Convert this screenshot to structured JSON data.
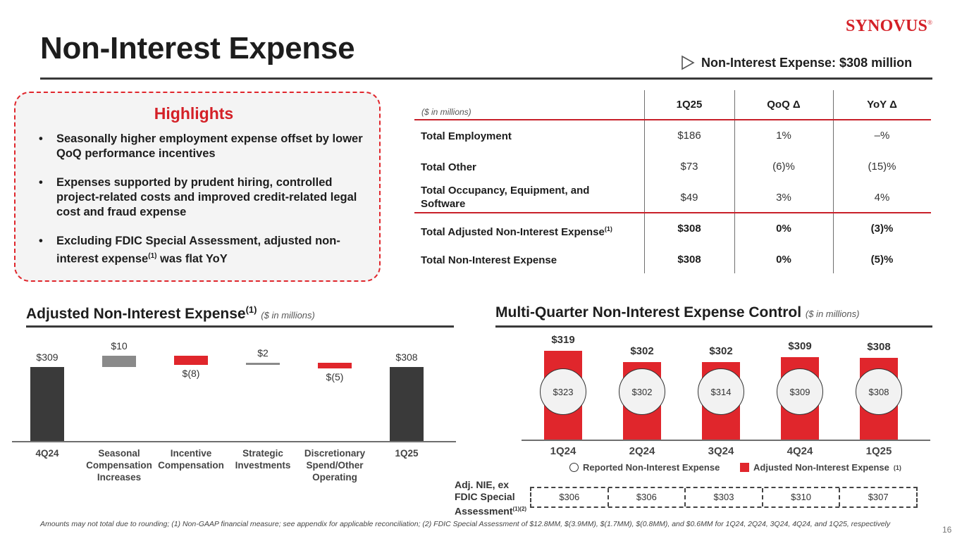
{
  "slide": {
    "title": "Non-Interest Expense",
    "logo_text": "Synovus",
    "logo_mark": "®",
    "headline": "Non-Interest Expense: $308 million",
    "page_number": "16",
    "footnote": "Amounts may not total due to rounding; (1) Non-GAAP financial measure; see appendix for applicable reconciliation; (2) FDIC Special Assessment of $12.8MM, $(3.9MM), $(1.7MM), $(0.8MM), and $0.6MM for 1Q24, 2Q24, 3Q24, 4Q24, and 1Q25, respectively"
  },
  "highlights": {
    "title": "Highlights",
    "items": [
      {
        "text": "Seasonally higher employment expense offset by lower QoQ performance incentives"
      },
      {
        "text": "Expenses supported by prudent hiring, controlled project-related costs and improved credit-related legal cost and fraud expense"
      },
      {
        "text": "Excluding FDIC Special Assessment, adjusted non-interest expense",
        "sup": "(1)",
        "tail": " was flat YoY"
      }
    ]
  },
  "table": {
    "unit_note": "($ in millions)",
    "headers": [
      "1Q25",
      "QoQ Δ",
      "YoY Δ"
    ],
    "rows": [
      {
        "label": "Total Employment",
        "sup": "",
        "values": [
          "$186",
          "1%",
          "–%"
        ],
        "bold": false
      },
      {
        "label": "Total Other",
        "sup": "",
        "values": [
          "$73",
          "(6)%",
          "(15)%"
        ],
        "bold": false
      },
      {
        "label": "Total Occupancy, Equipment, and Software",
        "sup": "",
        "values": [
          "$49",
          "3%",
          "4%"
        ],
        "bold": false
      },
      {
        "label": "Total Adjusted Non-Interest Expense",
        "sup": "(1)",
        "values": [
          "$308",
          "0%",
          "(3)%"
        ],
        "bold": true
      },
      {
        "label": "Total Non-Interest Expense",
        "sup": "",
        "values": [
          "$308",
          "0%",
          "(5)%"
        ],
        "bold": true
      }
    ]
  },
  "left_section": {
    "title": "Adjusted Non-Interest Expense",
    "title_sup": "(1)",
    "subtitle": "($ in millions)"
  },
  "right_section": {
    "title": "Multi-Quarter Non-Interest Expense Control",
    "subtitle": "($ in millions)"
  },
  "legend": {
    "reported": "Reported Non-Interest Expense",
    "adjusted": "Adjusted Non-Interest Expense",
    "adjusted_sup": "(1)"
  },
  "adj_nie": {
    "label_lines": [
      "Adj. NIE, ex",
      "FDIC Special",
      "Assessment"
    ],
    "label_sup": "(1)(2)",
    "values": [
      "$306",
      "$306",
      "$303",
      "$310",
      "$307"
    ]
  },
  "colors": {
    "accent": "#d42027",
    "dark_bar": "#3a3a3a",
    "gray_bar": "#8a8a8a",
    "red_bar": "#e0262c"
  },
  "chart_data": [
    {
      "type": "bar",
      "subtype": "waterfall",
      "title": "Adjusted Non-Interest Expense",
      "units": "$ in millions",
      "categories": [
        "4Q24",
        "Seasonal Compensation Increases",
        "Incentive Compensation",
        "Strategic Investments",
        "Discretionary Spend/Other Operating",
        "1Q25"
      ],
      "category_labels": [
        [
          "4Q24"
        ],
        [
          "Seasonal",
          "Compensation",
          "Increases"
        ],
        [
          "Incentive",
          "Compensation"
        ],
        [
          "Strategic",
          "Investments"
        ],
        [
          "Discretionary",
          "Spend/Other",
          "Operating"
        ],
        [
          "1Q25"
        ]
      ],
      "values": [
        309,
        10,
        -8,
        2,
        -5,
        308
      ],
      "kinds": [
        "total",
        "increase",
        "decrease",
        "increase",
        "decrease",
        "total"
      ],
      "labels": [
        "$309",
        "$10",
        "$(8)",
        "$2",
        "$(5)",
        "$308"
      ]
    },
    {
      "type": "bar",
      "title": "Multi-Quarter Non-Interest Expense Control",
      "units": "$ in millions",
      "categories": [
        "1Q24",
        "2Q24",
        "3Q24",
        "4Q24",
        "1Q25"
      ],
      "series": [
        {
          "name": "Adjusted Non-Interest Expense",
          "values": [
            319,
            302,
            302,
            309,
            308
          ],
          "labels": [
            "$319",
            "$302",
            "$302",
            "$309",
            "$308"
          ]
        },
        {
          "name": "Reported Non-Interest Expense",
          "values": [
            323,
            302,
            314,
            309,
            308
          ],
          "labels": [
            "$323",
            "$302",
            "$314",
            "$309",
            "$308"
          ]
        }
      ]
    }
  ]
}
